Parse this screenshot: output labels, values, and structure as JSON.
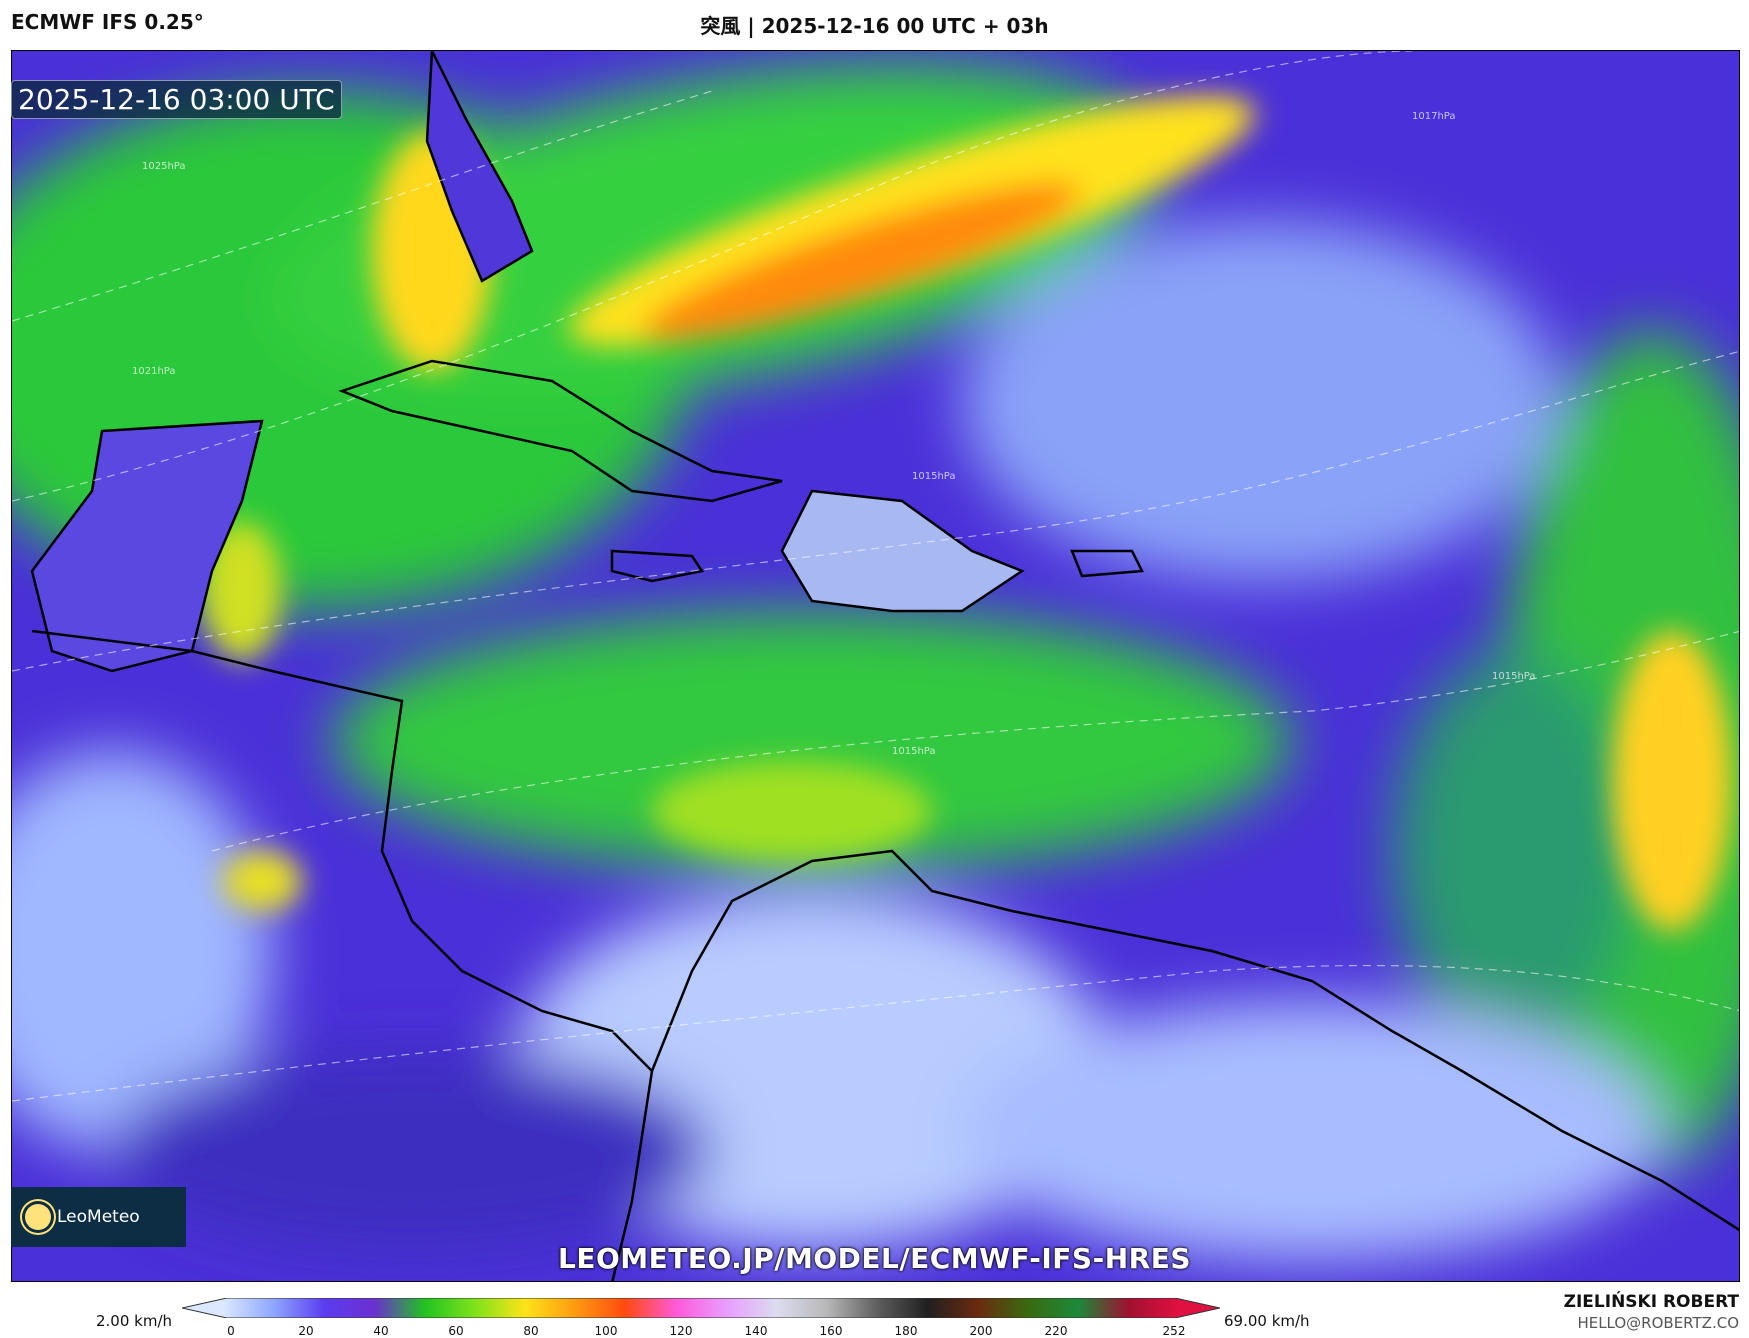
{
  "header": {
    "model": "ECMWF IFS 0.25°",
    "title": "突風 | 2025-12-16 00 UTC + 03h"
  },
  "map": {
    "valid_time": "2025-12-16 03:00 UTC",
    "watermark_url": "LEOMETEO.JP/MODEL/ECMWF-IFS-HRES",
    "logo_text": "LeoMeteo",
    "isobar_labels": [
      "1025hPa",
      "1021hPa",
      "1017hPa",
      "1015hPa",
      "1015hPa",
      "1015hPa"
    ],
    "variable": "wind gust"
  },
  "colorbar": {
    "min_label": "2.00 km/h",
    "max_label": "69.00 km/h",
    "ticks": [
      "0",
      "20",
      "40",
      "60",
      "80",
      "100",
      "120",
      "140",
      "160",
      "180",
      "200",
      "220",
      "252"
    ],
    "colors": [
      "#dbe8ff",
      "#8fa6ff",
      "#5a3df0",
      "#6b2fd0",
      "#22c322",
      "#7ee21a",
      "#ffe21a",
      "#ff9a10",
      "#ff4a10",
      "#ff5ad8",
      "#e89cff",
      "#dcdcf0",
      "#b8b8b8",
      "#606060",
      "#202020",
      "#6a2a10",
      "#3a6a10",
      "#1a8a3a",
      "#a01030",
      "#e01040"
    ]
  },
  "footer": {
    "author": "ZIELIŃSKI ROBERT",
    "email": "HELLO@ROBERTZ.CO"
  }
}
